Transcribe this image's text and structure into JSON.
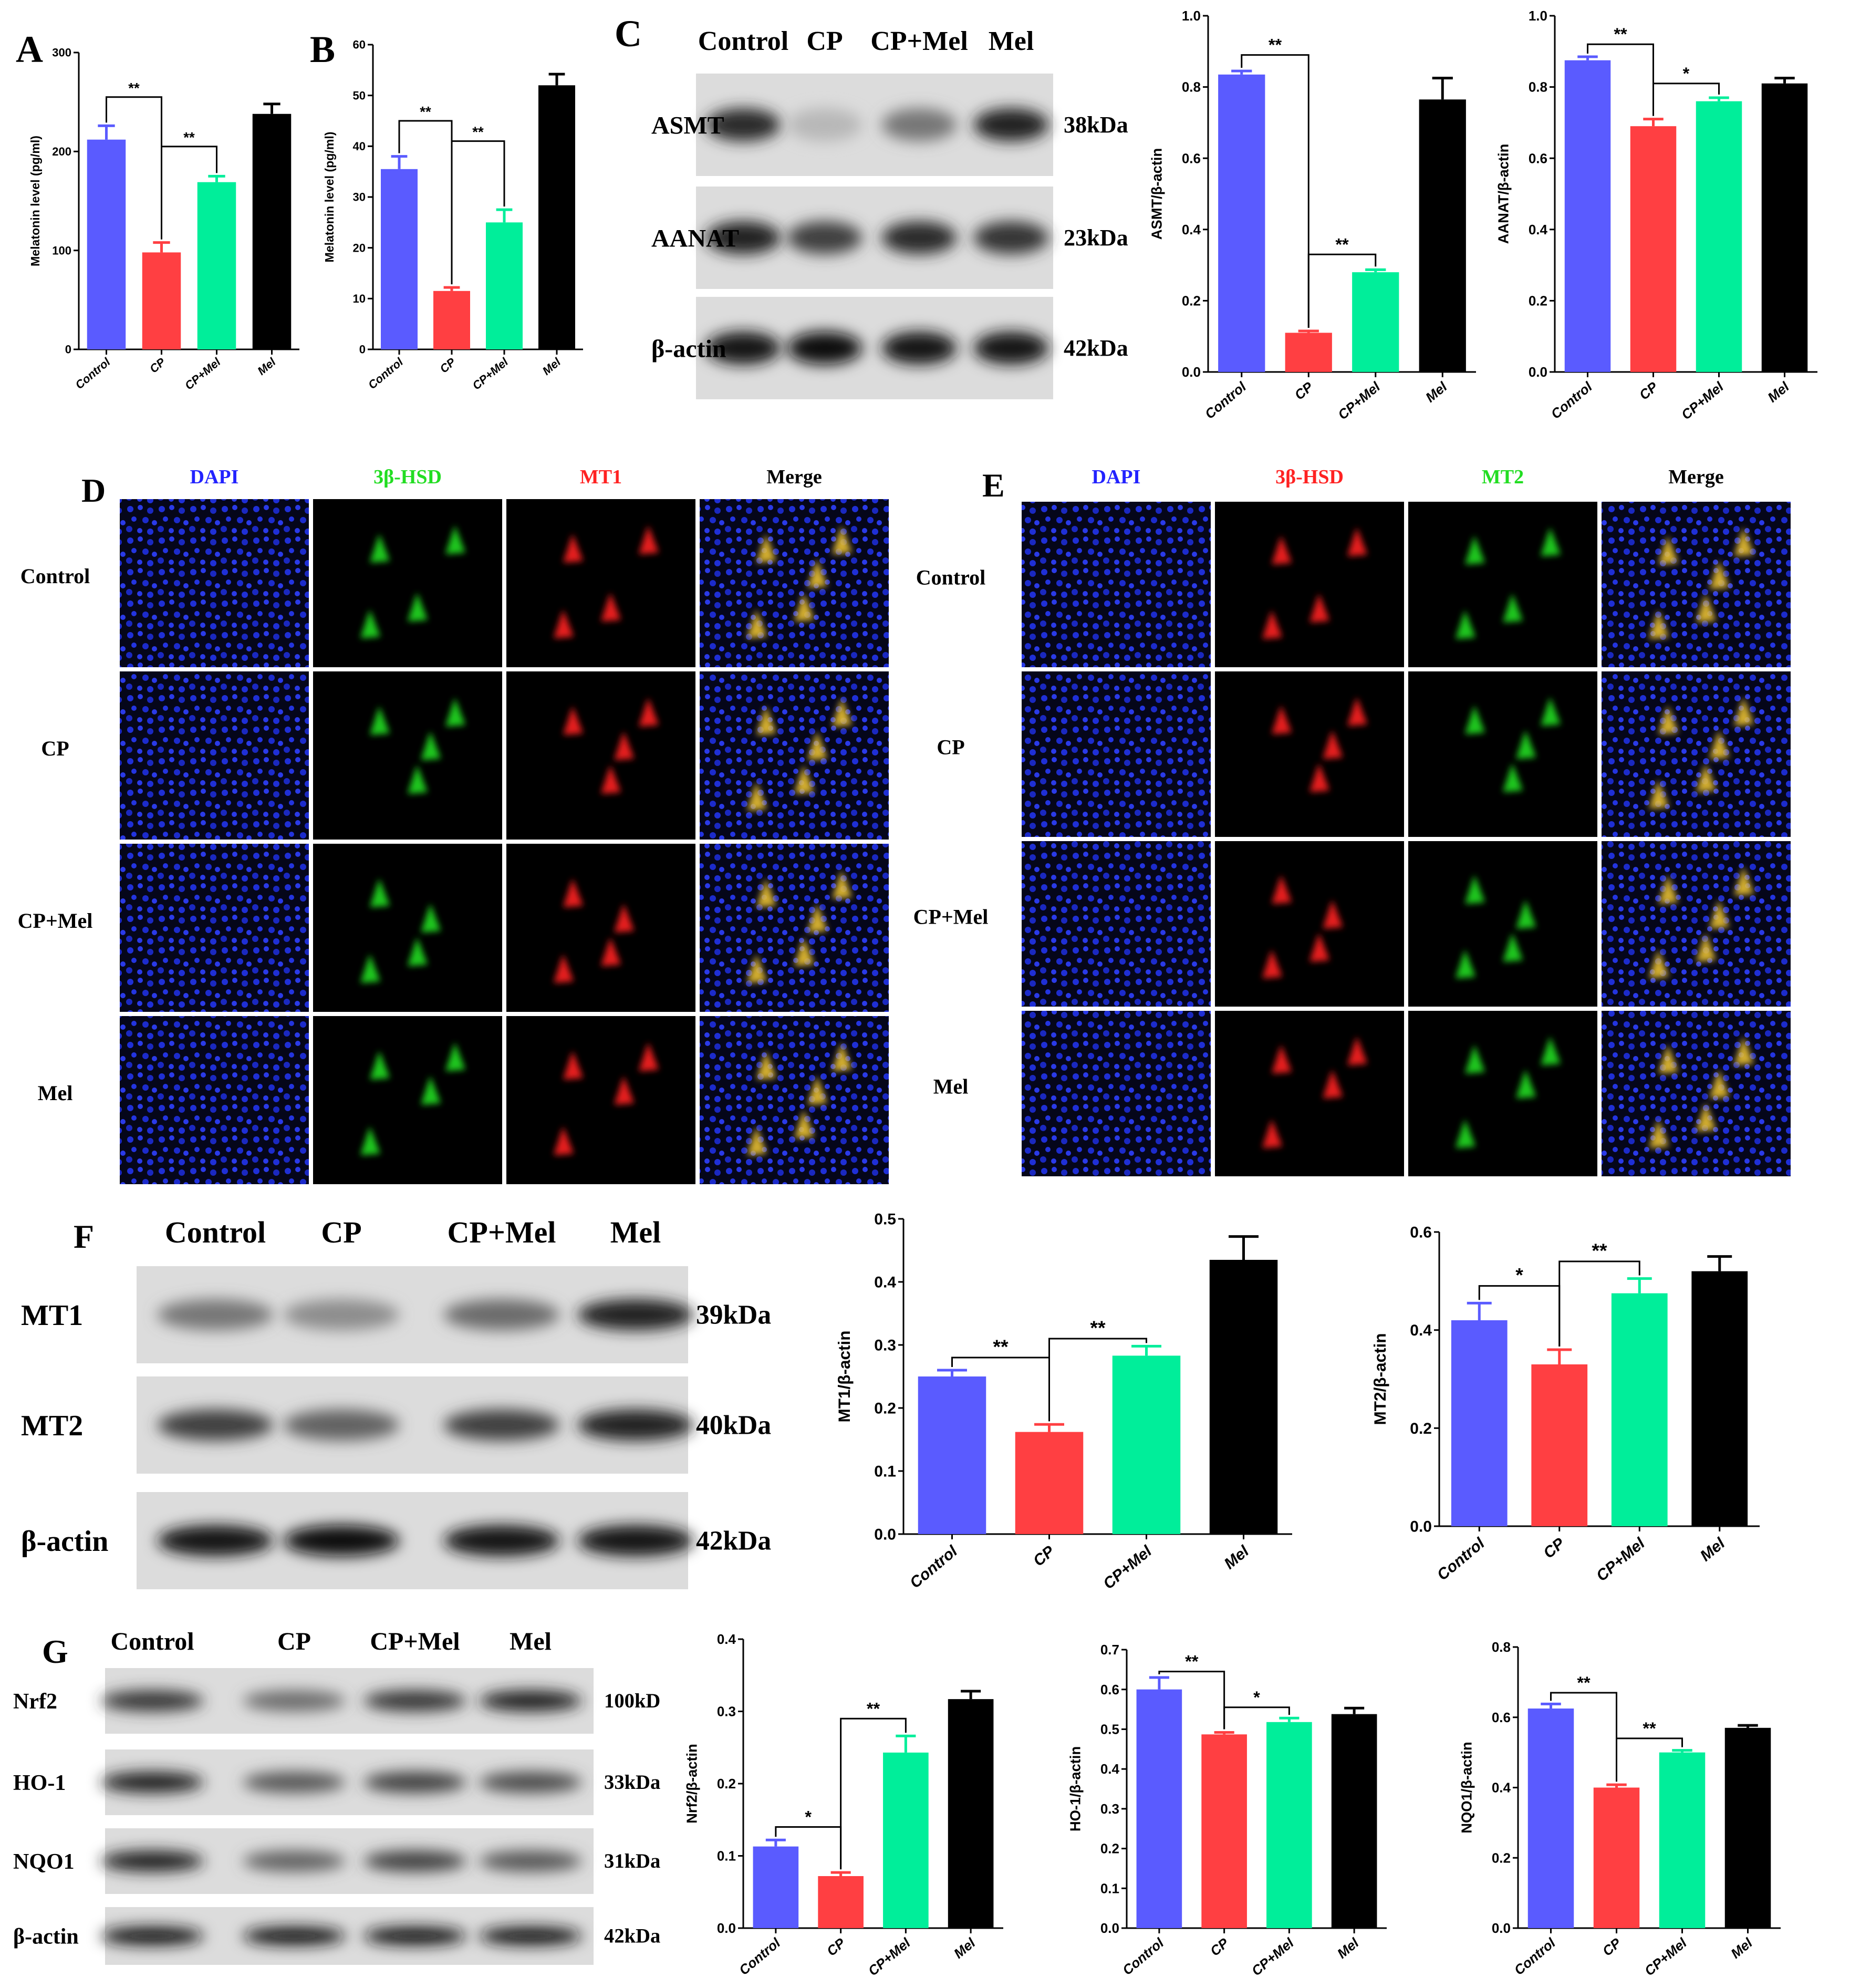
{
  "groups": [
    "Control",
    "CP",
    "CP+Mel",
    "Mel"
  ],
  "colors": {
    "control": "#5a5bff",
    "cp": "#ff3f42",
    "cpmel": "#00ee9a",
    "mel": "#000000"
  },
  "panels": {
    "A": "A",
    "B": "B",
    "C": "C",
    "D": "D",
    "E": "E",
    "F": "F",
    "G": "G"
  },
  "blots": {
    "C": {
      "lanes": [
        "Control",
        "CP",
        "CP+Mel",
        "Mel"
      ],
      "rows": [
        {
          "name": "ASMT",
          "kda": "38kDa",
          "intensity": [
            0.8,
            0.15,
            0.45,
            0.85
          ]
        },
        {
          "name": "AANAT",
          "kda": "23kDa",
          "intensity": [
            0.85,
            0.7,
            0.8,
            0.75
          ]
        },
        {
          "name": "β-actin",
          "kda": "42kDa",
          "intensity": [
            0.9,
            0.95,
            0.9,
            0.9
          ]
        }
      ]
    },
    "F": {
      "lanes": [
        "Control",
        "CP",
        "CP+Mel",
        "Mel"
      ],
      "rows": [
        {
          "name": "MT1",
          "kda": "39kDa",
          "intensity": [
            0.45,
            0.35,
            0.5,
            0.85
          ]
        },
        {
          "name": "MT2",
          "kda": "40kDa",
          "intensity": [
            0.7,
            0.55,
            0.7,
            0.85
          ]
        },
        {
          "name": "β-actin",
          "kda": "42kDa",
          "intensity": [
            0.9,
            0.95,
            0.9,
            0.9
          ]
        }
      ]
    },
    "G": {
      "lanes": [
        "Control",
        "CP",
        "CP+Mel",
        "Mel"
      ],
      "rows": [
        {
          "name": "Nrf2",
          "kda": "100kD",
          "intensity": [
            0.75,
            0.5,
            0.75,
            0.85
          ]
        },
        {
          "name": "HO-1",
          "kda": "33kDa",
          "intensity": [
            0.85,
            0.6,
            0.7,
            0.65
          ]
        },
        {
          "name": "NQO1",
          "kda": "31kDa",
          "intensity": [
            0.85,
            0.55,
            0.7,
            0.6
          ]
        },
        {
          "name": "β-actin",
          "kda": "42kDa",
          "intensity": [
            0.9,
            0.9,
            0.9,
            0.9
          ]
        }
      ]
    }
  },
  "if_panels": {
    "D": {
      "headers": [
        "DAPI",
        "3β-HSD",
        "MT1",
        "Merge"
      ],
      "header_colors": [
        "#2222ff",
        "#22dd22",
        "#ff2222",
        "#000000"
      ],
      "rows": [
        "Control",
        "CP",
        "CP+Mel",
        "Mel"
      ]
    },
    "E": {
      "headers": [
        "DAPI",
        "3β-HSD",
        "MT2",
        "Merge"
      ],
      "header_colors": [
        "#2222ff",
        "#ff2222",
        "#22dd22",
        "#000000"
      ],
      "rows": [
        "Control",
        "CP",
        "CP+Mel",
        "Mel"
      ]
    }
  },
  "chart_data": [
    {
      "id": "A",
      "type": "bar",
      "categories": [
        "Control",
        "CP",
        "CP+Mel",
        "Mel"
      ],
      "values": [
        212,
        98,
        169,
        238
      ],
      "errors": [
        14,
        10,
        6,
        10
      ],
      "ylabel": "Melatonin level (pg/ml)",
      "ylim": [
        0,
        300
      ],
      "yticks": [
        "0",
        "100",
        "200",
        "300"
      ],
      "sig": [
        {
          "from": 0,
          "to": 1,
          "label": "**",
          "level": 255
        },
        {
          "from": 1,
          "to": 2,
          "label": "**",
          "level": 205
        }
      ]
    },
    {
      "id": "B",
      "type": "bar",
      "categories": [
        "Control",
        "CP",
        "CP+Mel",
        "Mel"
      ],
      "values": [
        35.5,
        11.5,
        25,
        52
      ],
      "errors": [
        2.5,
        0.7,
        2.5,
        2.2
      ],
      "ylabel": "Melatonin level (pg/ml)",
      "ylim": [
        0,
        60
      ],
      "yticks": [
        "0",
        "10",
        "20",
        "30",
        "40",
        "50",
        "60"
      ],
      "sig": [
        {
          "from": 0,
          "to": 1,
          "label": "**",
          "level": 45
        },
        {
          "from": 1,
          "to": 2,
          "label": "**",
          "level": 41
        }
      ]
    },
    {
      "id": "C1",
      "type": "bar",
      "categories": [
        "Control",
        "CP",
        "CP+Mel",
        "Mel"
      ],
      "values": [
        0.835,
        0.11,
        0.28,
        0.765
      ],
      "errors": [
        0.01,
        0.005,
        0.007,
        0.06
      ],
      "ylabel": "ASMT/β-actin",
      "ylim": [
        0,
        1.0
      ],
      "yticks": [
        "0.0",
        "0.2",
        "0.4",
        "0.6",
        "0.8",
        "1.0"
      ],
      "sig": [
        {
          "from": 0,
          "to": 1,
          "label": "**",
          "level": 0.89
        },
        {
          "from": 1,
          "to": 2,
          "label": "**",
          "level": 0.33
        }
      ]
    },
    {
      "id": "C2",
      "type": "bar",
      "categories": [
        "Control",
        "CP",
        "CP+Mel",
        "Mel"
      ],
      "values": [
        0.875,
        0.69,
        0.76,
        0.81
      ],
      "errors": [
        0.01,
        0.02,
        0.01,
        0.015
      ],
      "ylabel": "AANAT/β-actin",
      "ylim": [
        0,
        1.0
      ],
      "yticks": [
        "0.0",
        "0.2",
        "0.4",
        "0.6",
        "0.8",
        "1.0"
      ],
      "sig": [
        {
          "from": 0,
          "to": 1,
          "label": "**",
          "level": 0.92
        },
        {
          "from": 1,
          "to": 2,
          "label": "*",
          "level": 0.81
        }
      ]
    },
    {
      "id": "F1",
      "type": "bar",
      "categories": [
        "Control",
        "CP",
        "CP+Mel",
        "Mel"
      ],
      "values": [
        0.25,
        0.162,
        0.283,
        0.435
      ],
      "errors": [
        0.01,
        0.012,
        0.015,
        0.037
      ],
      "ylabel": "MT1/β-actin",
      "ylim": [
        0,
        0.5
      ],
      "yticks": [
        "0.0",
        "0.1",
        "0.2",
        "0.3",
        "0.4",
        "0.5"
      ],
      "sig": [
        {
          "from": 0,
          "to": 1,
          "label": "**",
          "level": 0.28
        },
        {
          "from": 1,
          "to": 2,
          "label": "**",
          "level": 0.31
        }
      ]
    },
    {
      "id": "F2",
      "type": "bar",
      "categories": [
        "Control",
        "CP",
        "CP+Mel",
        "Mel"
      ],
      "values": [
        0.42,
        0.33,
        0.475,
        0.52
      ],
      "errors": [
        0.035,
        0.03,
        0.03,
        0.03
      ],
      "ylabel": "MT2/β-actin",
      "ylim": [
        0,
        0.6
      ],
      "yticks": [
        "0.0",
        "0.2",
        "0.4",
        "0.6"
      ],
      "sig": [
        {
          "from": 0,
          "to": 1,
          "label": "*",
          "level": 0.49
        },
        {
          "from": 1,
          "to": 2,
          "label": "**",
          "level": 0.54
        }
      ]
    },
    {
      "id": "G1",
      "type": "bar",
      "categories": [
        "Control",
        "CP",
        "CP+Mel",
        "Mel"
      ],
      "values": [
        0.113,
        0.072,
        0.243,
        0.317
      ],
      "errors": [
        0.009,
        0.005,
        0.023,
        0.011
      ],
      "ylabel": "Nrf2/β-actin",
      "ylim": [
        0,
        0.4
      ],
      "yticks": [
        "0.0",
        "0.1",
        "0.2",
        "0.3",
        "0.4"
      ],
      "sig": [
        {
          "from": 0,
          "to": 1,
          "label": "*",
          "level": 0.14
        },
        {
          "from": 1,
          "to": 2,
          "label": "**",
          "level": 0.29
        }
      ]
    },
    {
      "id": "G2",
      "type": "bar",
      "categories": [
        "Control",
        "CP",
        "CP+Mel",
        "Mel"
      ],
      "values": [
        0.6,
        0.487,
        0.518,
        0.538
      ],
      "errors": [
        0.03,
        0.005,
        0.01,
        0.015
      ],
      "ylabel": "HO-1/β-actin",
      "ylim": [
        0,
        0.7
      ],
      "yticks": [
        "0.0",
        "0.1",
        "0.2",
        "0.3",
        "0.4",
        "0.5",
        "0.6",
        "0.7"
      ],
      "sig": [
        {
          "from": 0,
          "to": 1,
          "label": "**",
          "level": 0.645
        },
        {
          "from": 1,
          "to": 2,
          "label": "*",
          "level": 0.555
        }
      ]
    },
    {
      "id": "G3",
      "type": "bar",
      "categories": [
        "Control",
        "CP",
        "CP+Mel",
        "Mel"
      ],
      "values": [
        0.625,
        0.4,
        0.5,
        0.57
      ],
      "errors": [
        0.013,
        0.008,
        0.006,
        0.007
      ],
      "ylabel": "NQO1/β-actin",
      "ylim": [
        0,
        0.8
      ],
      "yticks": [
        "0.0",
        "0.2",
        "0.4",
        "0.6",
        "0.8"
      ],
      "sig": [
        {
          "from": 0,
          "to": 1,
          "label": "**",
          "level": 0.67
        },
        {
          "from": 1,
          "to": 2,
          "label": "**",
          "level": 0.54
        }
      ]
    }
  ]
}
